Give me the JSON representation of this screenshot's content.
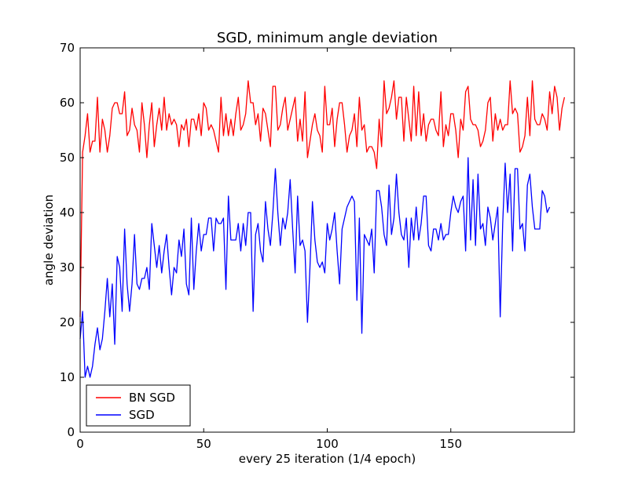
{
  "chart_data": {
    "type": "line",
    "title": "SGD, minimum angle deviation",
    "xlabel": "every 25 iteration (1/4 epoch)",
    "ylabel": "angle deviation",
    "xlim": [
      0,
      200
    ],
    "ylim": [
      0,
      70
    ],
    "xticks": [
      0,
      50,
      100,
      150
    ],
    "yticks": [
      0,
      10,
      20,
      30,
      40,
      50,
      60,
      70
    ],
    "grid": false,
    "legend": {
      "position": "lower-left",
      "entries": [
        "BN SGD",
        "SGD"
      ]
    },
    "series": [
      {
        "name": "BN SGD",
        "color": "#ff0000",
        "values": [
          21,
          51,
          54,
          58,
          51,
          53,
          53,
          61,
          51,
          57,
          55,
          51,
          54,
          59,
          60,
          60,
          58,
          58,
          62,
          54,
          55,
          59,
          56,
          55,
          51,
          60,
          56,
          50,
          56,
          60,
          52,
          56,
          59,
          55,
          61,
          55,
          58,
          56,
          57,
          56,
          52,
          56,
          55,
          57,
          52,
          57,
          57,
          55,
          58,
          54,
          60,
          59,
          55,
          56,
          55,
          53,
          51,
          61,
          54,
          58,
          54,
          57,
          54,
          58,
          61,
          55,
          56,
          58,
          64,
          60,
          60,
          56,
          58,
          53,
          59,
          58,
          55,
          52,
          63,
          63,
          55,
          56,
          59,
          61,
          55,
          57,
          59,
          61,
          53,
          57,
          53,
          62,
          50,
          53,
          56,
          58,
          55,
          54,
          51,
          63,
          56,
          56,
          59,
          52,
          57,
          60,
          60,
          56,
          51,
          54,
          55,
          58,
          52,
          61,
          55,
          56,
          51,
          52,
          52,
          51,
          48,
          57,
          52,
          64,
          58,
          59,
          61,
          64,
          57,
          61,
          61,
          53,
          61,
          57,
          53,
          63,
          54,
          62,
          54,
          58,
          53,
          56,
          57,
          57,
          55,
          54,
          62,
          52,
          56,
          54,
          58,
          58,
          55,
          50,
          57,
          55,
          62,
          63,
          57,
          56,
          56,
          55,
          52,
          53,
          55,
          60,
          61,
          53,
          58,
          55,
          57,
          55,
          56,
          56,
          64,
          58,
          59,
          58,
          51,
          52,
          54,
          61,
          54,
          64,
          57,
          56,
          56,
          58,
          57,
          55,
          62,
          58,
          63,
          61,
          55,
          59,
          61
        ]
      },
      {
        "name": "SGD",
        "color": "#0000ff",
        "values": [
          17,
          22,
          10,
          12,
          10,
          12,
          16,
          19,
          15,
          17,
          22,
          28,
          21,
          27,
          16,
          32,
          30,
          22,
          37,
          27,
          22,
          27,
          36,
          27,
          26,
          28,
          28,
          30,
          26,
          38,
          34,
          30,
          34,
          29,
          33,
          36,
          30,
          25,
          30,
          29,
          35,
          32,
          37,
          27,
          25,
          39,
          26,
          33,
          38,
          33,
          36,
          36,
          39,
          39,
          33,
          39,
          38,
          38,
          39,
          26,
          43,
          35,
          35,
          35,
          38,
          33,
          38,
          34,
          40,
          40,
          22,
          36,
          38,
          33,
          31,
          42,
          37,
          34,
          40,
          48,
          40,
          34,
          39,
          37,
          40,
          46,
          37,
          29,
          43,
          34,
          35,
          33,
          20,
          30,
          42,
          35,
          31,
          30,
          31,
          29,
          38,
          35,
          37,
          40,
          33,
          27,
          37,
          39,
          41,
          42,
          43,
          42,
          24,
          39,
          18,
          36,
          35,
          34,
          37,
          29,
          44,
          44,
          41,
          36,
          34,
          45,
          36,
          39,
          47,
          40,
          36,
          35,
          39,
          30,
          39,
          35,
          41,
          35,
          38,
          43,
          43,
          34,
          33,
          37,
          37,
          35,
          38,
          35,
          36,
          36,
          40,
          43,
          41,
          40,
          42,
          43,
          33,
          50,
          35,
          46,
          34,
          47,
          37,
          38,
          34,
          41,
          39,
          35,
          38,
          41,
          21,
          38,
          49,
          40,
          47,
          33,
          48,
          48,
          37,
          38,
          33,
          45,
          47,
          41,
          37,
          37,
          37,
          44,
          43,
          40,
          41
        ]
      }
    ]
  }
}
